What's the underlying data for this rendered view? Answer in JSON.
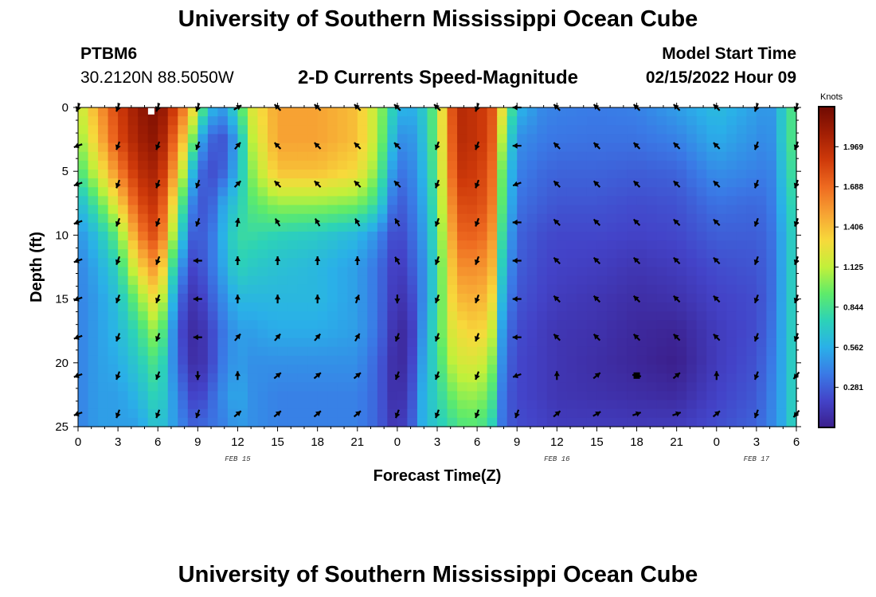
{
  "header": {
    "title": "University of Southern Mississippi Ocean Cube",
    "station_id": "PTBM6",
    "station_coords": "30.2120N  88.5050W",
    "subtitle": "2-D Currents Speed-Magnitude",
    "start_label": "Model Start Time",
    "start_value": "02/15/2022 Hour 09"
  },
  "footer": {
    "title": "University of Southern Mississippi Ocean Cube"
  },
  "colors": {
    "palette": [
      "#3b1f8c",
      "#4343c8",
      "#3a7ae6",
      "#2ab0e8",
      "#2cd2b8",
      "#5eeb6a",
      "#c2f03a",
      "#f7d93b",
      "#f7a233",
      "#ee6a20",
      "#cf3a0a",
      "#a11e04",
      "#6f0a02"
    ],
    "arrow": "#000000"
  },
  "chart_data": {
    "type": "heatmap",
    "title": "2-D Currents Speed-Magnitude",
    "xlabel": "Forecast Time(Z)",
    "ylabel": "Depth (ft)",
    "x_hours": [
      0,
      3,
      6,
      9,
      12,
      15,
      18,
      21,
      24,
      27,
      30,
      33,
      36,
      39,
      42,
      45,
      48,
      51,
      54
    ],
    "x_tick_labels": [
      "0",
      "3",
      "6",
      "9",
      "12",
      "15",
      "18",
      "21",
      "0",
      "3",
      "6",
      "9",
      "12",
      "15",
      "18",
      "21",
      "0",
      "3",
      "6"
    ],
    "xlim": [
      0,
      54
    ],
    "date_labels": [
      {
        "text": "FEB 15",
        "hour": 12
      },
      {
        "text": "FEB 16",
        "hour": 36
      },
      {
        "text": "FEB 17",
        "hour": 51
      }
    ],
    "y_ticks": [
      0,
      5,
      10,
      15,
      20,
      25
    ],
    "ylim": [
      0,
      25
    ],
    "colorbar": {
      "unit": "Knots",
      "ticks": [
        0.281,
        0.562,
        0.844,
        1.125,
        1.406,
        1.688,
        1.969
      ],
      "range": [
        0,
        2.25
      ]
    },
    "speed_profile": {
      "hours": [
        0,
        1.5,
        3,
        4.5,
        6,
        7.5,
        8.5,
        9,
        10,
        11,
        12,
        13,
        15,
        18,
        21,
        22.5,
        23.5,
        24,
        25,
        26,
        27,
        28,
        29,
        30,
        31,
        32,
        33,
        35,
        36,
        39,
        42,
        45,
        48,
        51,
        52,
        53,
        54
      ],
      "depths": [
        0,
        2.5,
        5,
        7.5,
        10,
        12.5,
        15,
        17.5,
        20,
        22.5,
        25
      ],
      "values": [
        [
          1.1,
          1.0,
          0.85,
          0.6,
          0.45,
          0.4,
          0.4,
          0.4,
          0.4,
          0.4,
          0.4
        ],
        [
          1.5,
          1.4,
          1.2,
          0.9,
          0.65,
          0.55,
          0.5,
          0.5,
          0.5,
          0.5,
          0.5
        ],
        [
          1.85,
          1.8,
          1.6,
          1.3,
          0.95,
          0.75,
          0.65,
          0.6,
          0.55,
          0.5,
          0.5
        ],
        [
          2.1,
          2.05,
          1.95,
          1.8,
          1.6,
          1.3,
          1.0,
          0.8,
          0.7,
          0.6,
          0.5
        ],
        [
          2.2,
          2.15,
          2.05,
          1.95,
          1.85,
          1.6,
          1.35,
          1.1,
          0.9,
          0.8,
          0.7
        ],
        [
          1.8,
          1.6,
          1.4,
          1.1,
          0.85,
          0.55,
          0.35,
          0.25,
          0.3,
          0.4,
          0.45
        ],
        [
          1.4,
          1.1,
          0.7,
          0.45,
          0.3,
          0.2,
          0.12,
          0.08,
          0.1,
          0.2,
          0.3
        ],
        [
          1.05,
          0.6,
          0.35,
          0.25,
          0.25,
          0.2,
          0.12,
          0.06,
          0.06,
          0.15,
          0.3
        ],
        [
          0.6,
          0.3,
          0.22,
          0.28,
          0.35,
          0.35,
          0.28,
          0.2,
          0.2,
          0.3,
          0.35
        ],
        [
          0.5,
          0.25,
          0.3,
          0.55,
          0.6,
          0.55,
          0.45,
          0.38,
          0.4,
          0.45,
          0.4
        ],
        [
          0.8,
          0.55,
          0.6,
          0.7,
          0.8,
          0.75,
          0.6,
          0.5,
          0.5,
          0.55,
          0.5
        ],
        [
          1.2,
          1.1,
          1.0,
          0.9,
          0.8,
          0.7,
          0.6,
          0.5,
          0.45,
          0.45,
          0.45
        ],
        [
          1.5,
          1.5,
          1.4,
          1.05,
          0.75,
          0.65,
          0.6,
          0.55,
          0.45,
          0.4,
          0.4
        ],
        [
          1.5,
          1.5,
          1.4,
          1.05,
          0.7,
          0.6,
          0.6,
          0.55,
          0.45,
          0.4,
          0.4
        ],
        [
          1.4,
          1.4,
          1.3,
          1.0,
          0.6,
          0.5,
          0.5,
          0.5,
          0.45,
          0.4,
          0.4
        ],
        [
          1.1,
          1.1,
          1.0,
          0.8,
          0.45,
          0.35,
          0.35,
          0.35,
          0.3,
          0.3,
          0.3
        ],
        [
          0.8,
          0.7,
          0.55,
          0.4,
          0.25,
          0.2,
          0.18,
          0.15,
          0.12,
          0.12,
          0.15
        ],
        [
          0.6,
          0.45,
          0.35,
          0.25,
          0.18,
          0.12,
          0.08,
          0.04,
          0.02,
          0.05,
          0.1
        ],
        [
          0.55,
          0.45,
          0.4,
          0.35,
          0.3,
          0.25,
          0.18,
          0.12,
          0.15,
          0.2,
          0.25
        ],
        [
          0.7,
          0.65,
          0.6,
          0.55,
          0.5,
          0.45,
          0.45,
          0.5,
          0.55,
          0.6,
          0.6
        ],
        [
          1.0,
          1.0,
          0.95,
          0.9,
          0.85,
          0.8,
          0.8,
          0.85,
          0.8,
          0.75,
          0.7
        ],
        [
          1.75,
          1.7,
          1.65,
          1.55,
          1.45,
          1.35,
          1.3,
          1.2,
          1.1,
          0.95,
          0.8
        ],
        [
          2.0,
          2.0,
          1.95,
          1.85,
          1.75,
          1.6,
          1.45,
          1.3,
          1.2,
          1.05,
          0.9
        ],
        [
          1.9,
          1.9,
          1.85,
          1.8,
          1.7,
          1.55,
          1.45,
          1.35,
          1.2,
          1.05,
          0.9
        ],
        [
          1.85,
          1.85,
          1.8,
          1.75,
          1.65,
          1.55,
          1.4,
          1.25,
          1.1,
          0.95,
          0.8
        ],
        [
          1.2,
          1.0,
          0.85,
          0.8,
          0.7,
          0.6,
          0.5,
          0.4,
          0.35,
          0.3,
          0.3
        ],
        [
          0.6,
          0.45,
          0.4,
          0.35,
          0.3,
          0.28,
          0.25,
          0.22,
          0.2,
          0.2,
          0.22
        ],
        [
          0.42,
          0.38,
          0.32,
          0.28,
          0.22,
          0.2,
          0.18,
          0.15,
          0.15,
          0.15,
          0.18
        ],
        [
          0.4,
          0.36,
          0.3,
          0.25,
          0.2,
          0.18,
          0.15,
          0.12,
          0.12,
          0.12,
          0.15
        ],
        [
          0.38,
          0.35,
          0.3,
          0.25,
          0.2,
          0.16,
          0.12,
          0.1,
          0.08,
          0.1,
          0.15
        ],
        [
          0.4,
          0.35,
          0.28,
          0.22,
          0.18,
          0.12,
          0.08,
          0.05,
          0.04,
          0.08,
          0.14
        ],
        [
          0.5,
          0.4,
          0.3,
          0.24,
          0.2,
          0.15,
          0.1,
          0.03,
          0.0,
          0.06,
          0.15
        ],
        [
          0.62,
          0.55,
          0.45,
          0.35,
          0.28,
          0.22,
          0.18,
          0.15,
          0.15,
          0.18,
          0.22
        ],
        [
          0.5,
          0.45,
          0.4,
          0.32,
          0.28,
          0.25,
          0.22,
          0.22,
          0.24,
          0.26,
          0.3
        ],
        [
          0.45,
          0.42,
          0.38,
          0.35,
          0.32,
          0.3,
          0.3,
          0.32,
          0.35,
          0.38,
          0.4
        ],
        [
          0.7,
          0.7,
          0.65,
          0.6,
          0.55,
          0.55,
          0.55,
          0.55,
          0.55,
          0.55,
          0.55
        ],
        [
          0.95,
          0.95,
          0.9,
          0.85,
          0.8,
          0.8,
          0.8,
          0.8,
          0.8,
          0.8,
          0.8
        ]
      ]
    },
    "vector_field": {
      "hours": [
        0,
        3,
        6,
        9,
        12,
        15,
        18,
        21,
        24,
        27,
        30,
        33,
        36,
        39,
        42,
        45,
        48,
        51,
        54
      ],
      "depths": [
        0,
        3,
        6,
        9,
        12,
        15,
        18,
        21,
        24
      ],
      "direction_deg": [
        [
          200,
          200,
          200,
          200,
          60,
          315,
          315,
          315,
          315,
          315,
          200,
          270,
          315,
          315,
          315,
          315,
          315,
          200,
          200
        ],
        [
          250,
          200,
          200,
          200,
          40,
          315,
          315,
          315,
          315,
          200,
          200,
          270,
          315,
          315,
          315,
          315,
          315,
          200,
          200
        ],
        [
          250,
          200,
          200,
          200,
          45,
          315,
          315,
          315,
          315,
          200,
          200,
          250,
          315,
          315,
          315,
          315,
          315,
          200,
          200
        ],
        [
          250,
          200,
          200,
          200,
          10,
          330,
          330,
          330,
          330,
          200,
          200,
          270,
          315,
          315,
          315,
          315,
          315,
          200,
          200
        ],
        [
          250,
          200,
          200,
          270,
          0,
          0,
          0,
          0,
          330,
          200,
          200,
          270,
          315,
          315,
          315,
          315,
          315,
          200,
          200
        ],
        [
          250,
          200,
          200,
          270,
          0,
          0,
          0,
          20,
          180,
          200,
          200,
          270,
          315,
          315,
          315,
          315,
          315,
          200,
          200
        ],
        [
          250,
          200,
          200,
          270,
          40,
          40,
          40,
          30,
          200,
          200,
          200,
          270,
          315,
          315,
          315,
          315,
          315,
          200,
          200
        ],
        [
          250,
          200,
          200,
          180,
          0,
          50,
          50,
          50,
          200,
          200,
          200,
          250,
          0,
          50,
          100,
          50,
          0,
          200,
          220
        ],
        [
          250,
          200,
          200,
          200,
          50,
          50,
          50,
          50,
          200,
          200,
          200,
          200,
          50,
          60,
          70,
          70,
          50,
          200,
          220
        ]
      ]
    },
    "annotations": [
      {
        "type": "marker",
        "color": "#ffffff",
        "hour": 5.5,
        "depth": 0.3
      },
      {
        "type": "marker",
        "color": "#000000",
        "hour": 42,
        "depth": 21
      }
    ]
  }
}
